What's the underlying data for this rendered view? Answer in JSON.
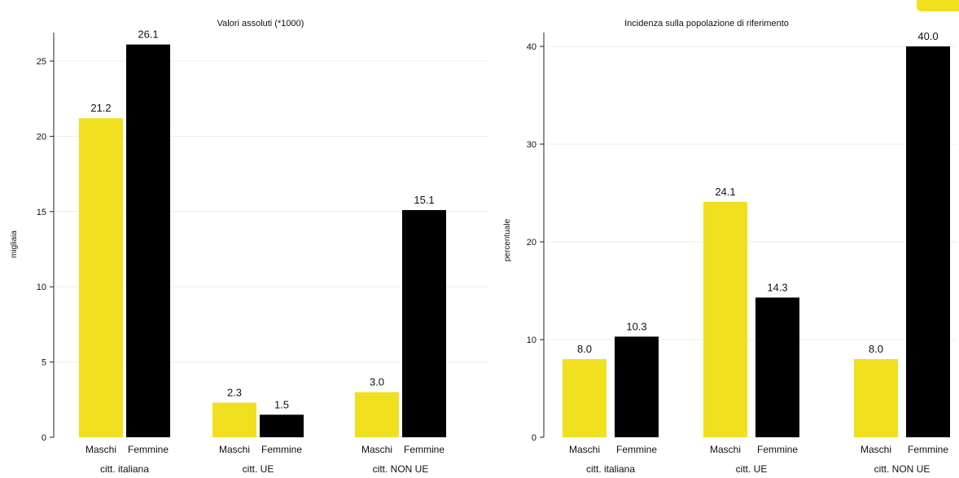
{
  "colors": {
    "maschi": "#f0e020",
    "femmine": "#000000",
    "axis": "#222222",
    "grid": "#ececec"
  },
  "chart_data": [
    {
      "type": "bar",
      "title": "Valori assoluti (*1000)",
      "xlabel": "",
      "ylabel": "migliaia",
      "ylim": [
        0,
        27
      ],
      "yticks": [
        0,
        5,
        10,
        15,
        20,
        25
      ],
      "grid": true,
      "categories": [
        "citt. italiana",
        "citt. UE",
        "citt. NON UE"
      ],
      "series": [
        {
          "name": "Maschi",
          "values": [
            21.2,
            2.3,
            3.0
          ],
          "labels": [
            "21.2",
            "2.3",
            "3.0"
          ]
        },
        {
          "name": "Femmine",
          "values": [
            26.1,
            1.5,
            15.1
          ],
          "labels": [
            "26.1",
            "1.5",
            "15.1"
          ]
        }
      ]
    },
    {
      "type": "bar",
      "title": "Incidenza sulla popolazione di riferimento",
      "xlabel": "",
      "ylabel": "percentuale",
      "ylim": [
        0,
        42
      ],
      "yticks": [
        0,
        10,
        20,
        30,
        40
      ],
      "grid": true,
      "categories": [
        "citt. italiana",
        "citt. UE",
        "citt. NON UE"
      ],
      "series": [
        {
          "name": "Maschi",
          "values": [
            8.0,
            24.1,
            8.0
          ],
          "labels": [
            "8.0",
            "24.1",
            "8.0"
          ]
        },
        {
          "name": "Femmine",
          "values": [
            10.3,
            14.3,
            40.0
          ],
          "labels": [
            "10.3",
            "14.3",
            "40.0"
          ]
        }
      ]
    }
  ]
}
